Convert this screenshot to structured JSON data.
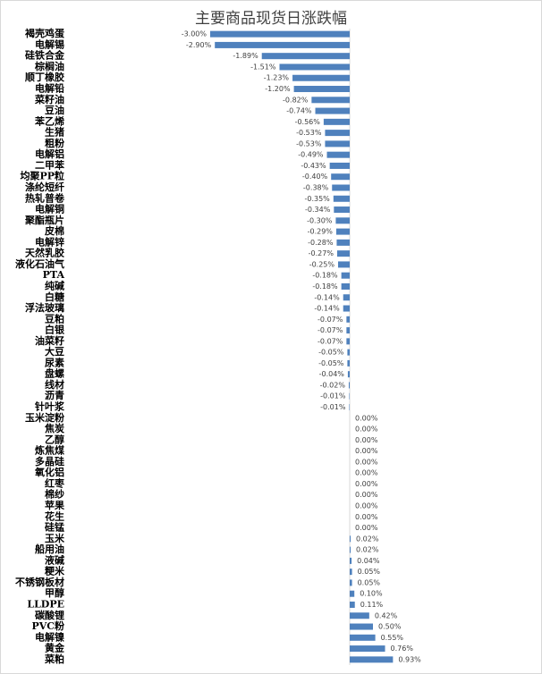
{
  "chart_data": {
    "type": "bar",
    "orientation": "horizontal",
    "title": "主要商品现货日涨跌幅",
    "color": "#4f81bd",
    "categories": [
      "褐壳鸡蛋",
      "电解锡",
      "硅铁合金",
      "棕榈油",
      "顺丁橡胶",
      "电解铅",
      "菜籽油",
      "豆油",
      "苯乙烯",
      "生猪",
      "粗粉",
      "电解铝",
      "二甲苯",
      "均聚PP粒",
      "涤纶短纤",
      "热轧普卷",
      "电解铜",
      "聚酯瓶片",
      "皮棉",
      "电解锌",
      "天然乳胶",
      "液化石油气",
      "PTA",
      "纯碱",
      "白糖",
      "浮法玻璃",
      "豆粕",
      "白银",
      "油菜籽",
      "大豆",
      "尿素",
      "盘螺",
      "线材",
      "沥青",
      "针叶浆",
      "玉米淀粉",
      "焦炭",
      "乙醇",
      "炼焦煤",
      "多晶硅",
      "氧化铝",
      "红枣",
      "棉纱",
      "苹果",
      "花生",
      "硅锰",
      "玉米",
      "船用油",
      "液碱",
      "粳米",
      "不锈钢板材",
      "甲醇",
      "LLDPE",
      "碳酸锂",
      "PVC粉",
      "电解镍",
      "黄金",
      "菜粕"
    ],
    "values": [
      -3.0,
      -2.9,
      -1.89,
      -1.51,
      -1.23,
      -1.2,
      -0.82,
      -0.74,
      -0.56,
      -0.53,
      -0.53,
      -0.49,
      -0.43,
      -0.4,
      -0.38,
      -0.35,
      -0.34,
      -0.3,
      -0.29,
      -0.28,
      -0.27,
      -0.25,
      -0.18,
      -0.18,
      -0.14,
      -0.14,
      -0.07,
      -0.07,
      -0.07,
      -0.05,
      -0.05,
      -0.04,
      -0.02,
      -0.01,
      -0.01,
      0.0,
      0.0,
      0.0,
      0.0,
      0.0,
      0.0,
      0.0,
      0.0,
      0.0,
      0.0,
      0.0,
      0.02,
      0.02,
      0.04,
      0.05,
      0.05,
      0.1,
      0.11,
      0.42,
      0.5,
      0.55,
      0.76,
      0.93
    ],
    "value_labels": [
      "-3.00%",
      "-2.90%",
      "-1.89%",
      "-1.51%",
      "-1.23%",
      "-1.20%",
      "-0.82%",
      "-0.74%",
      "-0.56%",
      "-0.53%",
      "-0.53%",
      "-0.49%",
      "-0.43%",
      "-0.40%",
      "-0.38%",
      "-0.35%",
      "-0.34%",
      "-0.30%",
      "-0.29%",
      "-0.28%",
      "-0.27%",
      "-0.25%",
      "-0.18%",
      "-0.18%",
      "-0.14%",
      "-0.14%",
      "-0.07%",
      "-0.07%",
      "-0.07%",
      "-0.05%",
      "-0.05%",
      "-0.04%",
      "-0.02%",
      "-0.01%",
      "-0.01%",
      "0.00%",
      "0.00%",
      "0.00%",
      "0.00%",
      "0.00%",
      "0.00%",
      "0.00%",
      "0.00%",
      "0.00%",
      "0.00%",
      "0.00%",
      "0.02%",
      "0.02%",
      "0.04%",
      "0.05%",
      "0.05%",
      "0.10%",
      "0.11%",
      "0.42%",
      "0.50%",
      "0.55%",
      "0.76%",
      "0.93%"
    ]
  }
}
